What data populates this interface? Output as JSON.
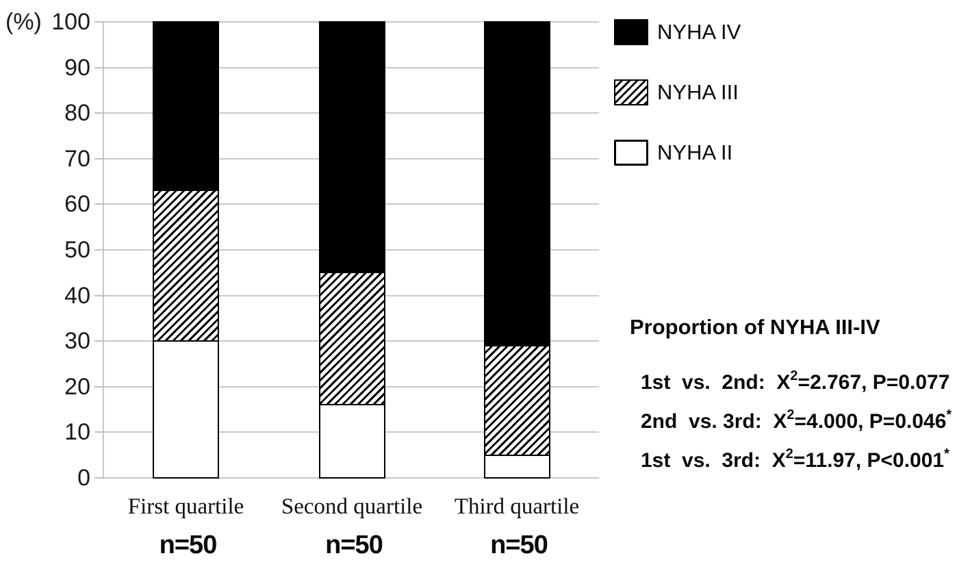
{
  "chart_data": {
    "type": "bar",
    "stacked": true,
    "percent_axis_label": "(%)",
    "categories": [
      "First quartile",
      "Second quartile",
      "Third quartile"
    ],
    "category_sublabels": [
      "n=50",
      "n=50",
      "n=50"
    ],
    "series": [
      {
        "name": "NYHA II",
        "pattern": "white",
        "values": [
          30,
          16,
          5
        ]
      },
      {
        "name": "NYHA III",
        "pattern": "hatched",
        "values": [
          33,
          29,
          24
        ]
      },
      {
        "name": "NYHA IV",
        "pattern": "black",
        "values": [
          37,
          55,
          71
        ]
      }
    ],
    "legend": [
      {
        "label": "NYHA IV",
        "pattern": "black"
      },
      {
        "label": "NYHA III",
        "pattern": "hatched"
      },
      {
        "label": "NYHA II",
        "pattern": "white"
      }
    ],
    "ylim": [
      0,
      100
    ],
    "yticks": [
      0,
      10,
      20,
      30,
      40,
      50,
      60,
      70,
      80,
      90,
      100
    ],
    "grid": true,
    "legend_position": "top-right",
    "colors": {
      "bar_fill_black": "#000000",
      "hatch_line": "#000000",
      "bar_border": "#000000",
      "gridline": "#c9c9c9",
      "text": "#111111"
    }
  },
  "stats": {
    "title": "Proportion of NYHA III-IV",
    "comparisons": [
      {
        "label": "1st  vs.  2nd:  ",
        "chi_base": "X",
        "chi_sup": "2",
        "value": "=2.767, P=0.077",
        "significant": ""
      },
      {
        "label": "2nd  vs. 3rd:  ",
        "chi_base": "X",
        "chi_sup": "2",
        "value": "=4.000, P=0.046",
        "significant": "*"
      },
      {
        "label": "1st  vs.  3rd:  ",
        "chi_base": "X",
        "chi_sup": "2",
        "value": "=11.97, P<0.001",
        "significant": "*"
      }
    ]
  }
}
